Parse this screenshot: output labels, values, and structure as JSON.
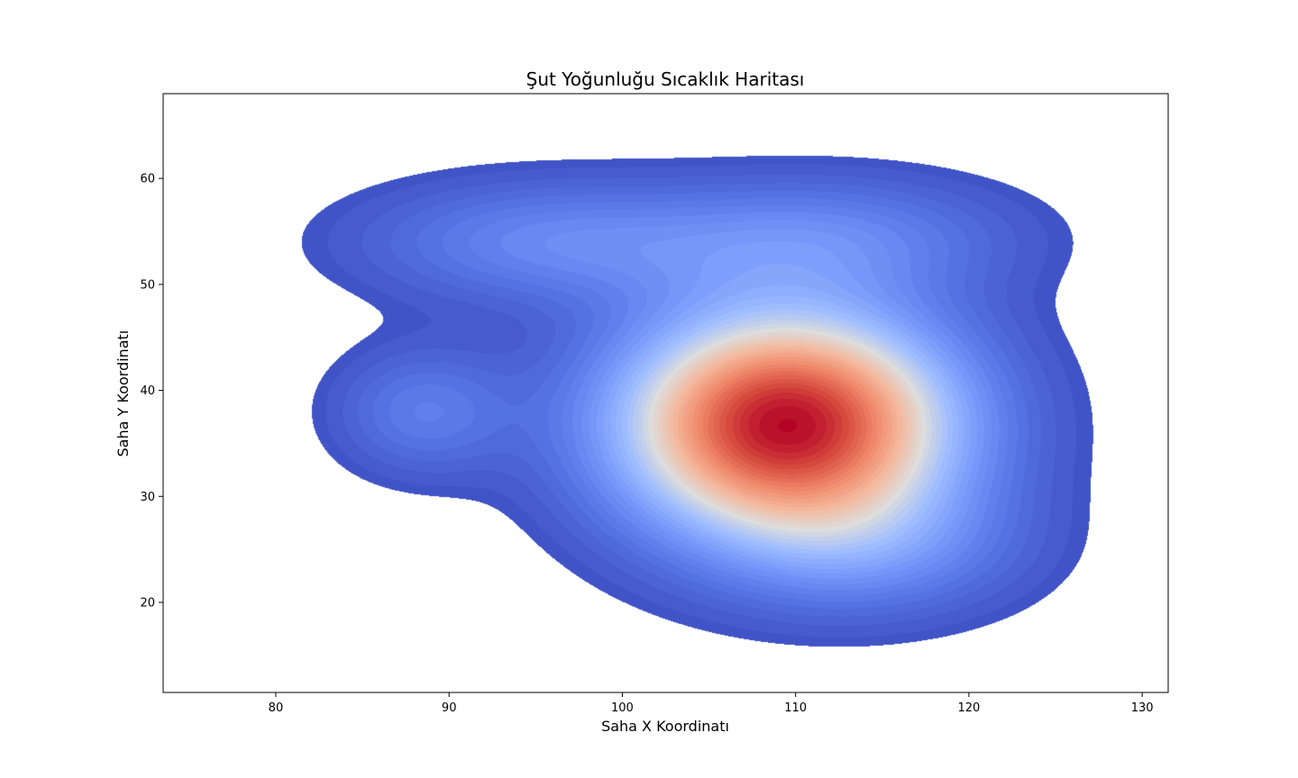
{
  "chart_data": {
    "type": "heatmap",
    "subtype": "kde-contour",
    "title": "Şut Yoğunluğu Sıcaklık Haritası",
    "xlabel": "Saha X Koordinatı",
    "ylabel": "Saha Y Koordinatı",
    "xlim": [
      73.5,
      131.5
    ],
    "ylim": [
      11.5,
      68
    ],
    "xticks": [
      80,
      90,
      100,
      110,
      120,
      130
    ],
    "yticks": [
      20,
      30,
      40,
      50,
      60
    ],
    "colormap": "coolwarm",
    "grid": false,
    "legend": false,
    "hotspots": [
      {
        "x": 109.5,
        "y": 36.8,
        "sx": 6.8,
        "sy": 7.5,
        "weight": 1.0
      },
      {
        "x": 88.5,
        "y": 38.0,
        "sx": 3.6,
        "sy": 4.2,
        "weight": 0.17
      },
      {
        "x": 95.5,
        "y": 54.0,
        "sx": 7.5,
        "sy": 4.0,
        "weight": 0.2
      },
      {
        "x": 112.0,
        "y": 54.5,
        "sx": 7.5,
        "sy": 4.0,
        "weight": 0.18
      },
      {
        "x": 115.0,
        "y": 25.0,
        "sx": 6.0,
        "sy": 4.5,
        "weight": 0.15
      }
    ],
    "colors": {
      "low": "#3b4cc0",
      "mid": "#dddddd",
      "high": "#b40426"
    }
  }
}
